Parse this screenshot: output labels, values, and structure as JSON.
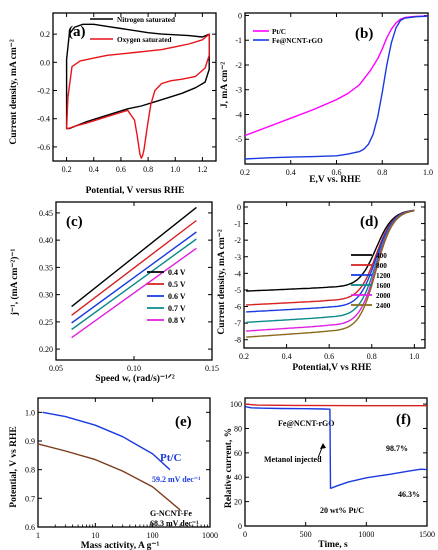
{
  "chart_data": [
    {
      "panel": "(a)",
      "type": "line",
      "xlabel": "Potential, V versus RHE",
      "ylabel": "Current density, mA cm⁻²",
      "xlim": [
        0.1,
        1.3
      ],
      "ylim": [
        -0.7,
        0.35
      ],
      "xticks": [
        {
          "v": 0.2,
          "l": "0.2"
        },
        {
          "v": 0.4,
          "l": "0.4"
        },
        {
          "v": 0.6,
          "l": "0.6"
        },
        {
          "v": 0.8,
          "l": "0.8"
        },
        {
          "v": 1.0,
          "l": "1.0"
        },
        {
          "v": 1.2,
          "l": "1.2"
        }
      ],
      "yticks": [
        {
          "v": 0.2,
          "l": "0.2"
        },
        {
          "v": 0.0,
          "l": "0.0"
        },
        {
          "v": -0.2,
          "l": "-0.2"
        },
        {
          "v": -0.4,
          "l": "-0.4"
        },
        {
          "v": -0.6,
          "l": "-0.6"
        }
      ],
      "legend_position": "top-right",
      "series": [
        {
          "name": "Nitrogen saturated",
          "color": "#000000",
          "closed": true,
          "x": [
            0.2,
            0.22,
            0.26,
            0.32,
            0.4,
            0.5,
            0.6,
            0.7,
            0.8,
            0.9,
            1.0,
            1.1,
            1.2,
            1.25,
            1.25,
            1.22,
            1.15,
            1.05,
            0.95,
            0.85,
            0.75,
            0.65,
            0.55,
            0.45,
            0.35,
            0.27,
            0.22,
            0.2
          ],
          "y": [
            0.02,
            0.2,
            0.25,
            0.27,
            0.27,
            0.255,
            0.24,
            0.225,
            0.21,
            0.2,
            0.195,
            0.19,
            0.18,
            0.2,
            -0.05,
            -0.14,
            -0.18,
            -0.22,
            -0.25,
            -0.28,
            -0.31,
            -0.33,
            -0.36,
            -0.39,
            -0.42,
            -0.45,
            -0.47,
            -0.47
          ]
        },
        {
          "name": "Oxygen saturated",
          "color": "#e8141a",
          "closed": false,
          "x": [
            0.2,
            0.21,
            0.24,
            0.3,
            0.4,
            0.5,
            0.6,
            0.7,
            0.8,
            0.9,
            1.0,
            1.1,
            1.2,
            1.25,
            1.25,
            1.22,
            1.15,
            1.05,
            0.97,
            0.9,
            0.85,
            0.82,
            0.8,
            0.78,
            0.77,
            0.76,
            0.75,
            0.74,
            0.72,
            0.7,
            0.65,
            0.55,
            0.45,
            0.35,
            0.27,
            0.21,
            0.2
          ],
          "y": [
            -0.47,
            -0.25,
            -0.03,
            0.01,
            0.03,
            0.05,
            0.06,
            0.07,
            0.08,
            0.09,
            0.11,
            0.13,
            0.16,
            0.2,
            0.05,
            -0.04,
            -0.1,
            -0.12,
            -0.13,
            -0.15,
            -0.2,
            -0.3,
            -0.42,
            -0.55,
            -0.62,
            -0.66,
            -0.68,
            -0.65,
            -0.52,
            -0.41,
            -0.34,
            -0.37,
            -0.4,
            -0.43,
            -0.45,
            -0.47,
            -0.47
          ]
        }
      ]
    },
    {
      "panel": "(b)",
      "type": "line",
      "xlabel": "E,V vs. RHE",
      "ylabel": "J, mA cm⁻²",
      "xlim": [
        0.2,
        1.0
      ],
      "ylim": [
        -6.0,
        0.1
      ],
      "xticks": [
        {
          "v": 0.2,
          "l": "0.2"
        },
        {
          "v": 0.4,
          "l": "0.4"
        },
        {
          "v": 0.6,
          "l": "0.6"
        },
        {
          "v": 0.8,
          "l": "0.8"
        },
        {
          "v": 1.0,
          "l": "1.0"
        }
      ],
      "yticks": [
        {
          "v": 0,
          "l": "0"
        },
        {
          "v": -1,
          "l": "-1"
        },
        {
          "v": -2,
          "l": "-2"
        },
        {
          "v": -3,
          "l": "-3"
        },
        {
          "v": -4,
          "l": "-4"
        },
        {
          "v": -5,
          "l": "-5"
        }
      ],
      "legend_position": "top-left",
      "series": [
        {
          "name": "Pt/C",
          "color": "#ff00ff",
          "x": [
            0.2,
            0.3,
            0.4,
            0.5,
            0.6,
            0.65,
            0.7,
            0.75,
            0.78,
            0.8,
            0.82,
            0.84,
            0.86,
            0.88,
            0.9,
            0.93,
            0.96,
            1.0
          ],
          "y": [
            -4.85,
            -4.5,
            -4.15,
            -3.8,
            -3.4,
            -3.15,
            -2.8,
            -2.2,
            -1.75,
            -1.35,
            -0.9,
            -0.55,
            -0.3,
            -0.15,
            -0.08,
            -0.05,
            -0.03,
            -0.02
          ]
        },
        {
          "name": "Fe@NCNT-rGO",
          "color": "#1a3ae0",
          "x": [
            0.2,
            0.3,
            0.4,
            0.5,
            0.6,
            0.65,
            0.7,
            0.72,
            0.74,
            0.76,
            0.78,
            0.8,
            0.82,
            0.84,
            0.86,
            0.88,
            0.9,
            0.95,
            1.0
          ],
          "y": [
            -5.8,
            -5.75,
            -5.72,
            -5.7,
            -5.67,
            -5.6,
            -5.5,
            -5.4,
            -5.2,
            -4.8,
            -4.1,
            -3.1,
            -2.0,
            -1.1,
            -0.5,
            -0.2,
            -0.1,
            -0.05,
            -0.03
          ]
        }
      ]
    },
    {
      "panel": "(c)",
      "type": "line",
      "xlabel": "Speed w, (rad/s)⁻¹ᐟ²",
      "ylabel": "j⁻¹, (mA cm⁻²)⁻¹",
      "xlim": [
        0.05,
        0.15
      ],
      "ylim": [
        0.18,
        0.47
      ],
      "xticks": [
        {
          "v": 0.05,
          "l": "0.05"
        },
        {
          "v": 0.1,
          "l": "0.10"
        },
        {
          "v": 0.15,
          "l": "0.15"
        }
      ],
      "yticks": [
        {
          "v": 0.2,
          "l": "0.20"
        },
        {
          "v": 0.25,
          "l": "0.25"
        },
        {
          "v": 0.3,
          "l": "0.30"
        },
        {
          "v": 0.35,
          "l": "0.35"
        },
        {
          "v": 0.4,
          "l": "0.40"
        },
        {
          "v": 0.45,
          "l": "0.45"
        }
      ],
      "legend_position": "bottom-right",
      "series": [
        {
          "name": "0.4 V",
          "color": "#000000",
          "x": [
            0.06,
            0.14
          ],
          "y": [
            0.278,
            0.46
          ]
        },
        {
          "name": "0.5 V",
          "color": "#d62020",
          "x": [
            0.06,
            0.14
          ],
          "y": [
            0.262,
            0.436
          ]
        },
        {
          "name": "0.6 V",
          "color": "#1a3ae0",
          "x": [
            0.06,
            0.14
          ],
          "y": [
            0.248,
            0.415
          ]
        },
        {
          "name": "0.7 V",
          "color": "#0a8a8a",
          "x": [
            0.06,
            0.14
          ],
          "y": [
            0.236,
            0.402
          ]
        },
        {
          "name": "0.8 V",
          "color": "#e020e0",
          "x": [
            0.06,
            0.14
          ],
          "y": [
            0.221,
            0.385
          ]
        }
      ]
    },
    {
      "panel": "(d)",
      "type": "line",
      "xlabel": "Potential,V vs RHE",
      "ylabel": "Current density, mA cm⁻²",
      "xlim": [
        0.2,
        1.05
      ],
      "ylim": [
        -8.5,
        0.3
      ],
      "xticks": [
        {
          "v": 0.2,
          "l": "0.2"
        },
        {
          "v": 0.4,
          "l": "0.4"
        },
        {
          "v": 0.6,
          "l": "0.6"
        },
        {
          "v": 0.8,
          "l": "0.8"
        },
        {
          "v": 1.0,
          "l": "1.0"
        }
      ],
      "yticks": [
        {
          "v": 0,
          "l": "0"
        },
        {
          "v": -1,
          "l": "-1"
        },
        {
          "v": -2,
          "l": "-2"
        },
        {
          "v": -3,
          "l": "-3"
        },
        {
          "v": -4,
          "l": "-4"
        },
        {
          "v": -5,
          "l": "-5"
        },
        {
          "v": -6,
          "l": "-6"
        },
        {
          "v": -7,
          "l": "-7"
        },
        {
          "v": -8,
          "l": "-8"
        }
      ],
      "legend_position": "bottom-right",
      "series": [
        {
          "name": "400",
          "color": "#000000",
          "limit": -4.7
        },
        {
          "name": "800",
          "color": "#d62020",
          "limit": -5.5
        },
        {
          "name": "1200",
          "color": "#1a3ae0",
          "limit": -5.9
        },
        {
          "name": "1600",
          "color": "#0a8a8a",
          "limit": -6.5
        },
        {
          "name": "2000",
          "color": "#e020e0",
          "limit": -7.0
        },
        {
          "name": "2400",
          "color": "#8a6a1a",
          "limit": -7.35
        }
      ]
    },
    {
      "panel": "(e)",
      "type": "line",
      "xlabel": "Mass activity, A g⁻¹",
      "ylabel": "Potential, V vs RHE",
      "xscale": "log",
      "xlim": [
        1,
        1000
      ],
      "ylim": [
        0.6,
        1.05
      ],
      "xticks": [
        {
          "v": 1,
          "l": "1"
        },
        {
          "v": 10,
          "l": "10"
        },
        {
          "v": 100,
          "l": "100"
        },
        {
          "v": 1000,
          "l": "1000"
        }
      ],
      "yticks": [
        {
          "v": 0.6,
          "l": "0.6"
        },
        {
          "v": 0.7,
          "l": "0.7"
        },
        {
          "v": 0.8,
          "l": "0.8"
        },
        {
          "v": 0.9,
          "l": "0.9"
        },
        {
          "v": 1.0,
          "l": "1.0"
        }
      ],
      "series": [
        {
          "name": "Pt/C",
          "color": "#1a3ae0",
          "x": [
            1.2,
            3,
            10,
            30,
            100,
            200
          ],
          "y": [
            1.0,
            0.985,
            0.955,
            0.915,
            0.855,
            0.8
          ]
        },
        {
          "name": "G-NCNT-Fe",
          "color": "#7a3a1a",
          "x": [
            1,
            3,
            10,
            30,
            100,
            300
          ],
          "y": [
            0.89,
            0.865,
            0.835,
            0.795,
            0.74,
            0.66
          ]
        }
      ],
      "annotations": [
        {
          "text": "Pt/C",
          "color": "#1a3ae0"
        },
        {
          "text": "59.2 mV dec⁻¹",
          "color": "#1a3ae0"
        },
        {
          "text": "G-NCNT-Fe",
          "color": "#000000"
        },
        {
          "text": "68.3 mV dec⁻¹",
          "color": "#000000"
        }
      ]
    },
    {
      "panel": "(f)",
      "type": "line",
      "xlabel": "Time, s",
      "ylabel": "Relative current, %",
      "xlim": [
        0,
        1500
      ],
      "ylim": [
        0,
        105
      ],
      "xticks": [
        {
          "v": 0,
          "l": "0"
        },
        {
          "v": 500,
          "l": "500"
        },
        {
          "v": 1000,
          "l": "1000"
        },
        {
          "v": 1500,
          "l": "1500"
        }
      ],
      "yticks": [
        {
          "v": 0,
          "l": "0"
        },
        {
          "v": 20,
          "l": "20"
        },
        {
          "v": 40,
          "l": "40"
        },
        {
          "v": 60,
          "l": "60"
        },
        {
          "v": 80,
          "l": "80"
        },
        {
          "v": 100,
          "l": "100"
        }
      ],
      "series": [
        {
          "name": "Fe@NCNT-rGO",
          "color": "#d62020",
          "x": [
            0,
            100,
            400,
            700,
            1000,
            1500
          ],
          "y": [
            100,
            99.2,
            98.9,
            98.8,
            98.7,
            98.7
          ]
        },
        {
          "name": "20 wt% Pt/C",
          "color": "#1a3ae0",
          "x": [
            0,
            50,
            150,
            300,
            500,
            650,
            700,
            705,
            710,
            760,
            850,
            1000,
            1200,
            1350,
            1450,
            1500
          ],
          "y": [
            98,
            97,
            96.6,
            96.4,
            96.2,
            96.0,
            95.8,
            31,
            31,
            33,
            36,
            39.5,
            42.5,
            45,
            46.6,
            46.3
          ]
        }
      ],
      "annotations": [
        {
          "text": "Fe@NCNT-rGO",
          "color": "#000000"
        },
        {
          "text": "98.7%",
          "color": "#000000"
        },
        {
          "text": "Metanol injected",
          "color": "#000000"
        },
        {
          "text": "20 wt% Pt/C",
          "color": "#000000"
        },
        {
          "text": "46.3%",
          "color": "#000000"
        }
      ]
    }
  ]
}
